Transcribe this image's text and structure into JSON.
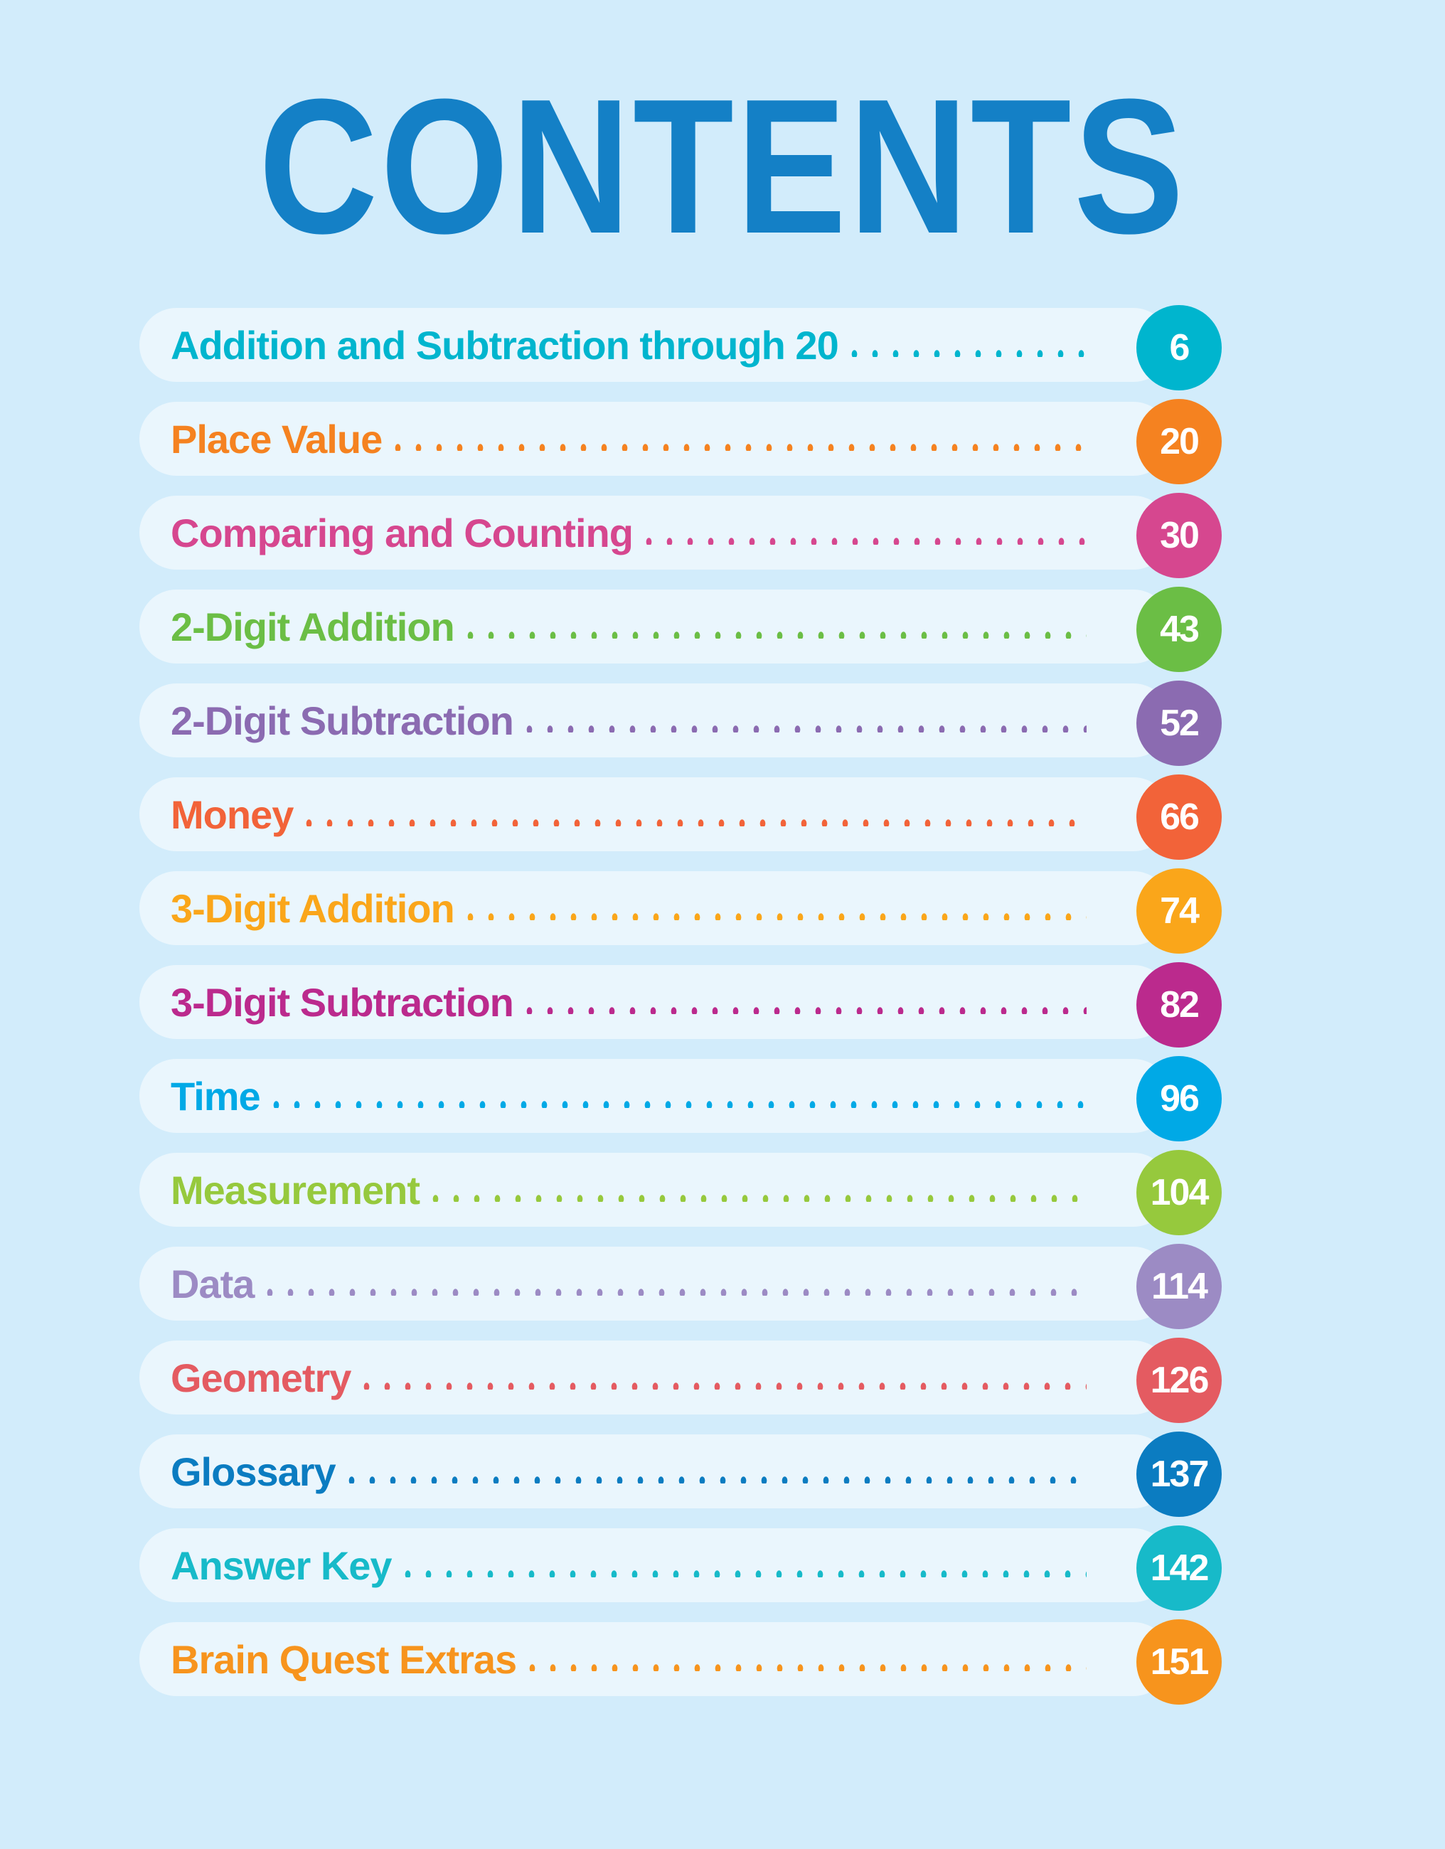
{
  "title": "CONTENTS",
  "background": "#D2ECFB",
  "entries": [
    {
      "label": "Addition and Subtraction through 20",
      "page": "6",
      "color": "#00B5CE"
    },
    {
      "label": "Place Value",
      "page": "20",
      "color": "#F58220"
    },
    {
      "label": "Comparing and Counting",
      "page": "30",
      "color": "#D6478F"
    },
    {
      "label": "2-Digit Addition",
      "page": "43",
      "color": "#6BBE45"
    },
    {
      "label": "2-Digit Subtraction",
      "page": "52",
      "color": "#8B6BB1"
    },
    {
      "label": "Money",
      "page": "66",
      "color": "#F26339"
    },
    {
      "label": "3-Digit Addition",
      "page": "74",
      "color": "#FAA61A"
    },
    {
      "label": "3-Digit Subtraction",
      "page": "82",
      "color": "#BB2A8D"
    },
    {
      "label": "Time",
      "page": "96",
      "color": "#00A9E6"
    },
    {
      "label": "Measurement",
      "page": "104",
      "color": "#96C93D"
    },
    {
      "label": "Data",
      "page": "114",
      "color": "#9C8BC4"
    },
    {
      "label": "Geometry",
      "page": "126",
      "color": "#E45B61"
    },
    {
      "label": "Glossary",
      "page": "137",
      "color": "#0B7CC1"
    },
    {
      "label": "Answer Key",
      "page": "142",
      "color": "#17BAC9"
    },
    {
      "label": "Brain Quest Extras",
      "page": "151",
      "color": "#F7941D"
    }
  ]
}
